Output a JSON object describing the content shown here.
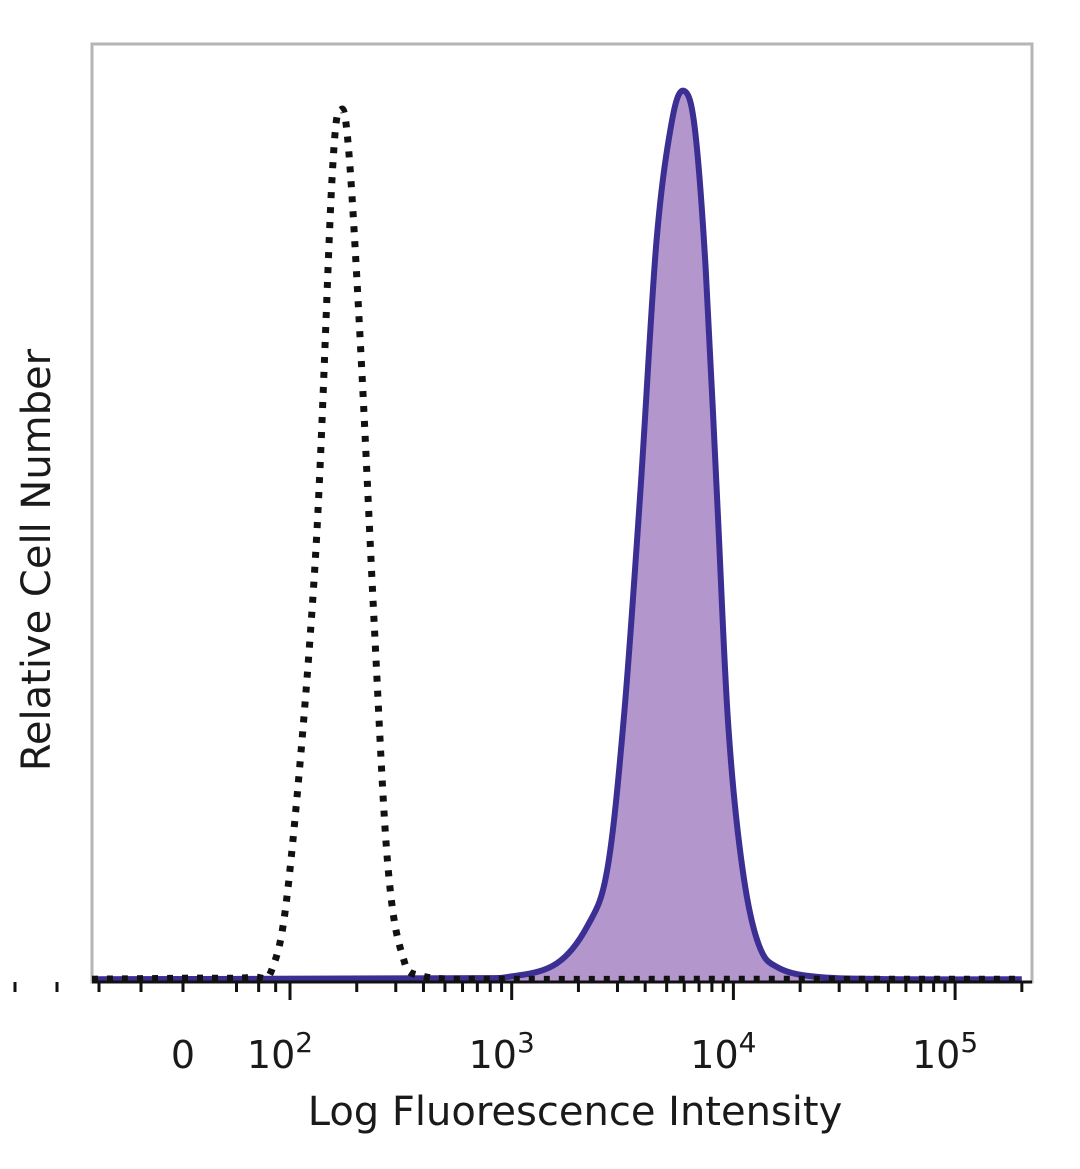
{
  "chart_data": {
    "type": "area",
    "title": "",
    "xlabel": "Log Fluorescence Intensity",
    "ylabel": "Relative Cell Number",
    "x_scale": "biexponential",
    "y_range": [
      0,
      100
    ],
    "grid": false,
    "legend": "none",
    "x_tick_labels": [
      {
        "value": 0,
        "base": "0",
        "exp": ""
      },
      {
        "value": 100,
        "base": "10",
        "exp": "2"
      },
      {
        "value": 1000,
        "base": "10",
        "exp": "3"
      },
      {
        "value": 10000,
        "base": "10",
        "exp": "4"
      },
      {
        "value": 100000,
        "base": "10",
        "exp": "5"
      }
    ],
    "series": [
      {
        "style": "dotted-black-outline",
        "color": "#111111",
        "points": [
          [
            -400,
            0.3
          ],
          [
            0,
            0.4
          ],
          [
            40,
            0.5
          ],
          [
            70,
            1.5
          ],
          [
            100,
            12
          ],
          [
            130,
            45
          ],
          [
            155,
            86
          ],
          [
            170,
            93
          ],
          [
            185,
            88
          ],
          [
            210,
            66
          ],
          [
            240,
            38
          ],
          [
            275,
            13
          ],
          [
            320,
            3
          ],
          [
            400,
            0.6
          ],
          [
            1000,
            0.3
          ],
          [
            10000,
            0.3
          ],
          [
            200000,
            0.3
          ]
        ]
      },
      {
        "style": "filled-purple",
        "color": "#3b2f93",
        "fill": "#b396cc",
        "points": [
          [
            -400,
            0.3
          ],
          [
            500,
            0.4
          ],
          [
            1000,
            0.6
          ],
          [
            1600,
            2
          ],
          [
            2200,
            6
          ],
          [
            2700,
            12
          ],
          [
            3200,
            28
          ],
          [
            3800,
            52
          ],
          [
            4500,
            79
          ],
          [
            5300,
            92
          ],
          [
            6000,
            95
          ],
          [
            6700,
            91
          ],
          [
            7500,
            76
          ],
          [
            8500,
            50
          ],
          [
            9500,
            27
          ],
          [
            11000,
            12
          ],
          [
            13000,
            4
          ],
          [
            16000,
            1.5
          ],
          [
            25000,
            0.5
          ],
          [
            60000,
            0.3
          ],
          [
            200000,
            0.3
          ]
        ]
      }
    ]
  }
}
